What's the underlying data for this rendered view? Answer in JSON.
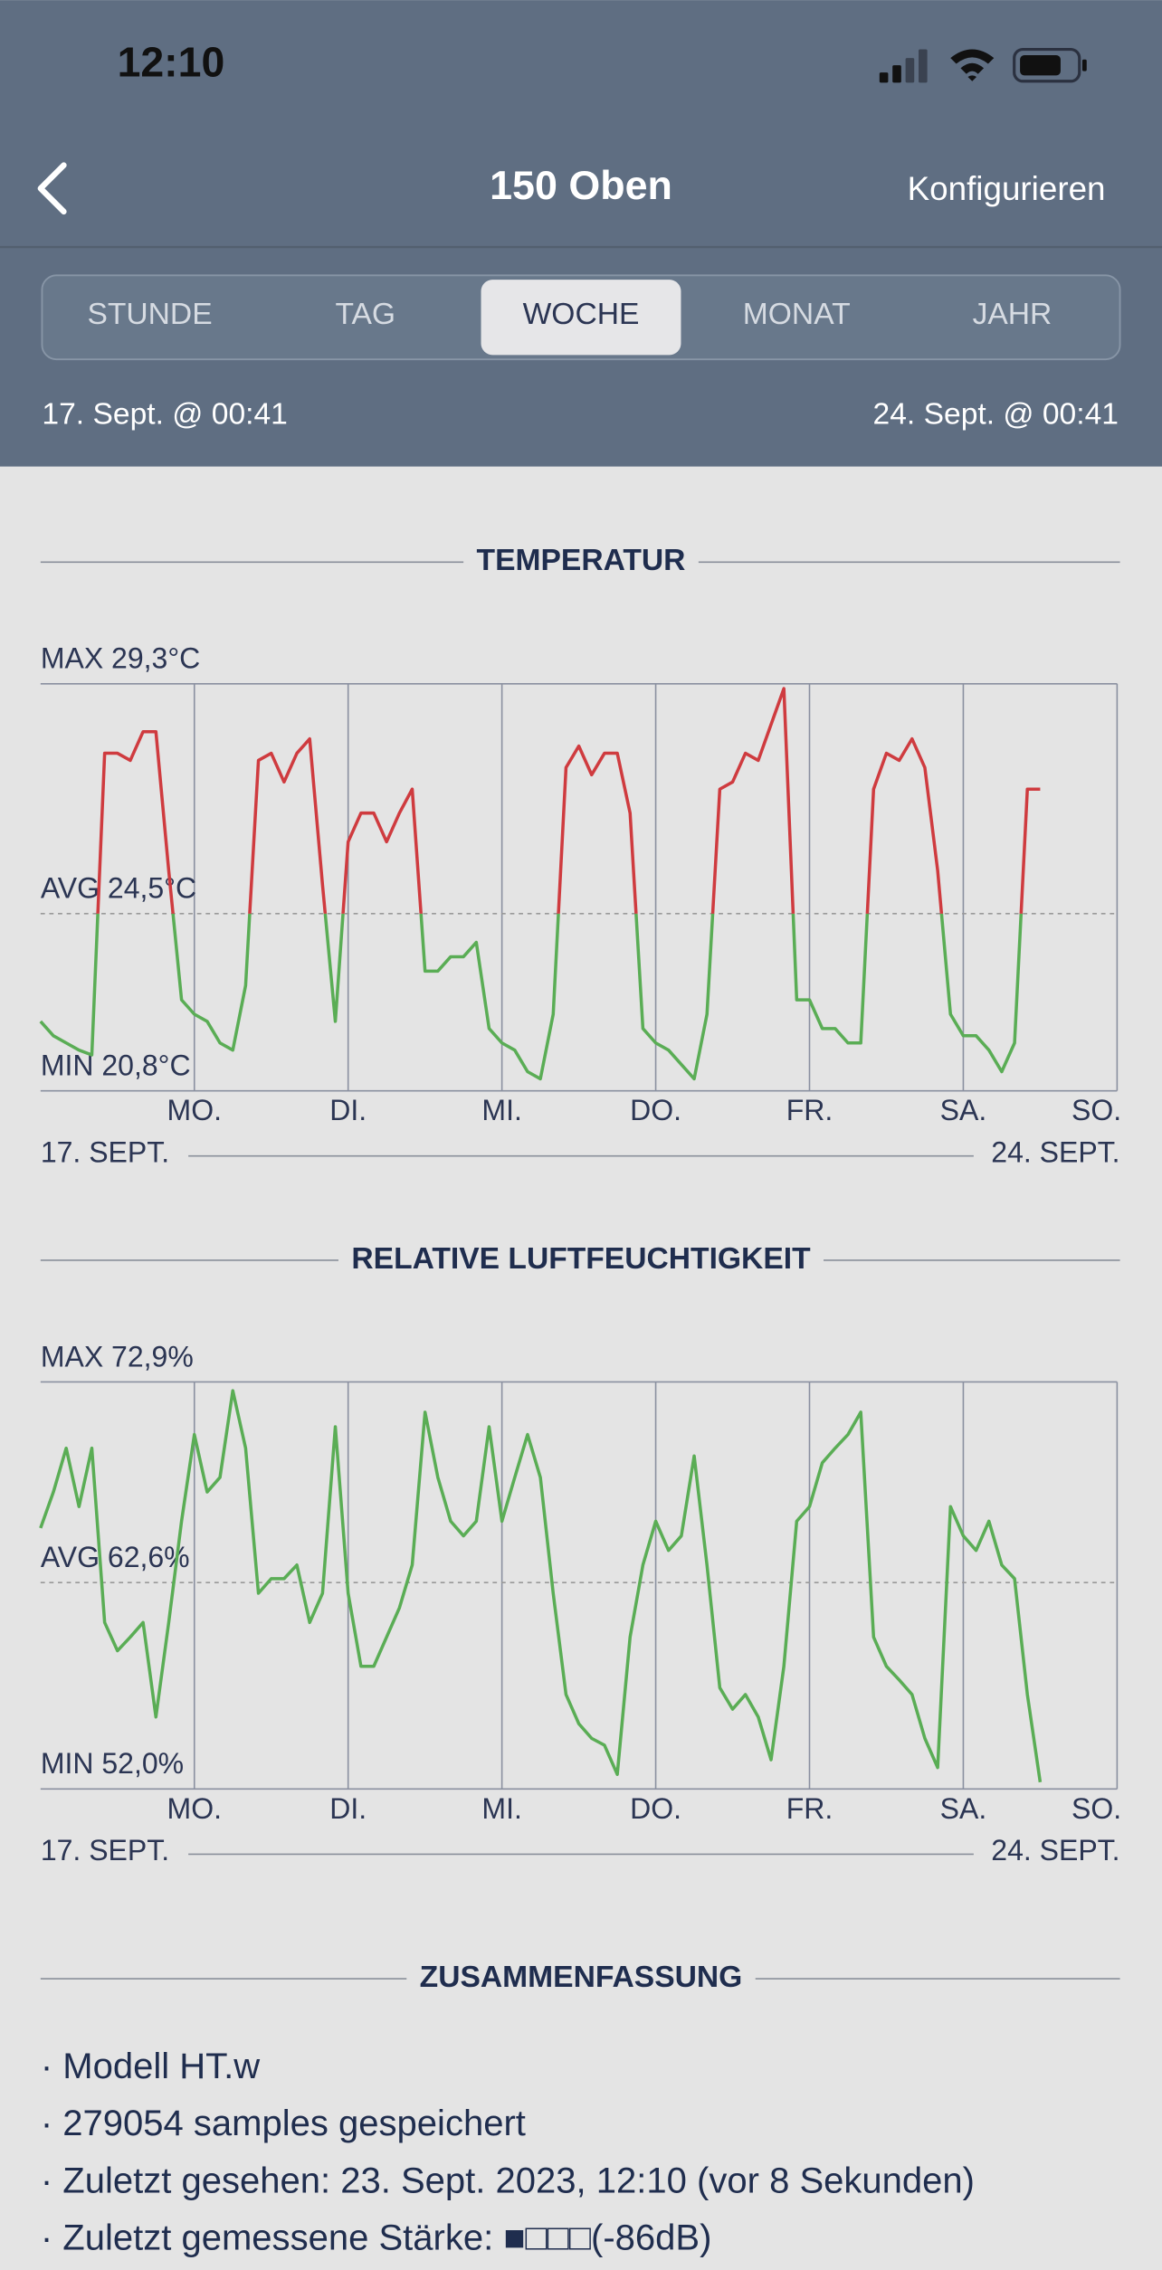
{
  "status_bar": {
    "time": "12:10"
  },
  "nav": {
    "title": "150 Oben",
    "action": "Konfigurieren"
  },
  "tabs": {
    "items": [
      "STUNDE",
      "TAG",
      "WOCHE",
      "MONAT",
      "JAHR"
    ],
    "selected": 2
  },
  "range": {
    "start": "17. Sept. @ 00:41",
    "end": "24. Sept. @ 00:41"
  },
  "chart_data": [
    {
      "type": "line",
      "title": "TEMPERATUR",
      "days": [
        "MO.",
        "DI.",
        "MI.",
        "DO.",
        "FR.",
        "SA.",
        "SO."
      ],
      "range_start": "17. SEPT.",
      "range_end": "24. SEPT.",
      "color": "#5aad55",
      "above_avg_color": "#cf3b3f",
      "ylim": [
        20.8,
        29.3
      ],
      "yticks": [
        {
          "value": 20.8,
          "label": "MIN 20,8°C"
        },
        {
          "value": 24.5,
          "label": "AVG 24,5°C"
        },
        {
          "value": 29.3,
          "label": "MAX 29,3°C"
        }
      ],
      "values": [
        22.25,
        21.95,
        21.8,
        21.65,
        21.55,
        27.85,
        27.85,
        27.7,
        28.3,
        28.3,
        25.4,
        22.7,
        22.4,
        22.25,
        21.8,
        21.65,
        23,
        27.7,
        27.85,
        27.25,
        27.85,
        28.15,
        25.1,
        22.25,
        26,
        26.6,
        26.6,
        26,
        26.6,
        27.1,
        23.3,
        23.3,
        23.6,
        23.6,
        23.9,
        22.1,
        21.8,
        21.65,
        21.2,
        21.05,
        22.4,
        27.55,
        28,
        27.4,
        27.85,
        27.85,
        26.6,
        22.1,
        21.8,
        21.65,
        21.35,
        21.05,
        22.4,
        27.1,
        27.25,
        27.85,
        27.7,
        28.45,
        29.2,
        22.7,
        22.7,
        22.1,
        22.1,
        21.8,
        21.8,
        27.1,
        27.85,
        27.7,
        28.15,
        27.55,
        25.4,
        22.4,
        21.95,
        21.95,
        21.65,
        21.2,
        21.8,
        27.1,
        27.1,
        null,
        null,
        null,
        null,
        null,
        null
      ]
    },
    {
      "type": "line",
      "title": "RELATIVE LUFTFEUCHTIGKEIT",
      "days": [
        "MO.",
        "DI.",
        "MI.",
        "DO.",
        "FR.",
        "SA.",
        "SO."
      ],
      "range_start": "17. SEPT.",
      "range_end": "24. SEPT.",
      "color": "#5aad55",
      "ylim": [
        52.0,
        72.9
      ],
      "yticks": [
        {
          "value": 52.0,
          "label": "MIN 52,0%"
        },
        {
          "value": 62.6,
          "label": "AVG 62,6%"
        },
        {
          "value": 72.9,
          "label": "MAX 72,9%"
        }
      ],
      "values": [
        65.4,
        67.25,
        69.5,
        66.5,
        69.5,
        60.55,
        59.1,
        59.8,
        60.55,
        55.7,
        60.55,
        65.75,
        70.2,
        67.25,
        68,
        72.45,
        69.5,
        62.05,
        62.8,
        62.8,
        63.5,
        60.55,
        62.05,
        70.6,
        62.05,
        58.3,
        58.3,
        59.8,
        61.3,
        63.5,
        71.35,
        68,
        65.75,
        65,
        65.75,
        70.6,
        65.75,
        68,
        70.2,
        68,
        62.05,
        56.85,
        55.35,
        54.6,
        54.25,
        52.75,
        59.8,
        63.5,
        65.75,
        64.25,
        65,
        69.1,
        63.5,
        57.2,
        56.1,
        56.85,
        55.7,
        53.5,
        58.3,
        65.75,
        66.5,
        68.75,
        69.5,
        70.2,
        71.35,
        59.8,
        58.3,
        57.6,
        56.85,
        54.6,
        53.1,
        66.5,
        65,
        64.25,
        65.75,
        63.5,
        62.8,
        56.85,
        52.35,
        null,
        null,
        null,
        null,
        null,
        null
      ]
    }
  ],
  "summary": {
    "title": "ZUSAMMENFASSUNG",
    "lines": [
      "· Modell HT.w",
      "· 279054 samples gespeichert",
      "· Zuletzt gesehen: 23. Sept. 2023, 12:10 (vor 8 Sekunden)",
      "· Zuletzt gemessene Stärke: ■□□□(-86dB)"
    ]
  }
}
